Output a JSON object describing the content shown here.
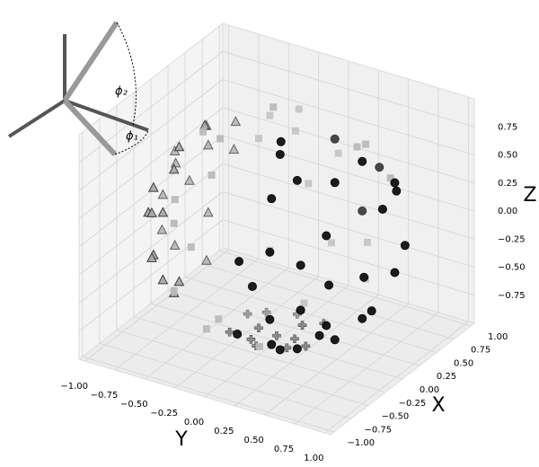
{
  "chart_data": {
    "type": "scatter3d",
    "xlabel": "X",
    "ylabel": "Y",
    "zlabel": "Z",
    "xlim": [
      -1.05,
      1.05
    ],
    "ylim": [
      -1.05,
      1.05
    ],
    "zlim": [
      -1,
      1
    ],
    "xticks": [
      {
        "value": -1,
        "label": "−1.00"
      },
      {
        "value": -0.75,
        "label": "−0.75"
      },
      {
        "value": -0.5,
        "label": "−0.50"
      },
      {
        "value": -0.25,
        "label": "−0.25"
      },
      {
        "value": 0,
        "label": "0.00"
      },
      {
        "value": 0.25,
        "label": "0.25"
      },
      {
        "value": 0.5,
        "label": "0.50"
      },
      {
        "value": 0.75,
        "label": "0.75"
      },
      {
        "value": 1,
        "label": "1.00"
      }
    ],
    "yticks": [
      {
        "value": -1,
        "label": "−1.00"
      },
      {
        "value": -0.75,
        "label": "−0.75"
      },
      {
        "value": -0.5,
        "label": "−0.50"
      },
      {
        "value": -0.25,
        "label": "−0.25"
      },
      {
        "value": 0,
        "label": "0.00"
      },
      {
        "value": 0.25,
        "label": "0.25"
      },
      {
        "value": 0.5,
        "label": "0.50"
      },
      {
        "value": 0.75,
        "label": "0.75"
      },
      {
        "value": 1,
        "label": "1.00"
      }
    ],
    "zticks": [
      {
        "value": -0.75,
        "label": "−0.75"
      },
      {
        "value": -0.5,
        "label": "−0.50"
      },
      {
        "value": -0.25,
        "label": "−0.25"
      },
      {
        "value": 0,
        "label": "0.00"
      },
      {
        "value": 0.25,
        "label": "0.25"
      },
      {
        "value": 0.5,
        "label": "0.50"
      },
      {
        "value": 0.75,
        "label": "0.75"
      }
    ],
    "grid": true,
    "annotations": [
      "ϕ₂",
      "ϕ₁"
    ],
    "series": [
      {
        "marker": "circle",
        "color": "#111111",
        "edgecolor": "#000000",
        "x": [
          0.3,
          -0.3,
          0.06,
          -0.1,
          0.5,
          -0.5,
          0.5,
          -0.5,
          0.2,
          -0.2,
          0.2,
          -0.2,
          -0.7,
          -0.7,
          0.7,
          -0.4,
          -0.4,
          -0.8,
          -0.8,
          -0.6,
          -0.6,
          -0.9,
          -0.3,
          -0.3,
          -0.75,
          -0.88,
          0.8,
          -0.55,
          -0.2,
          0.1,
          0.85,
          0.9
        ],
        "y": [
          0.9,
          0.9,
          0.85,
          0.85,
          0.7,
          0.7,
          0.7,
          0.7,
          0.6,
          0.6,
          0.6,
          0.6,
          0.6,
          0.6,
          0.6,
          0.4,
          0.4,
          0.4,
          0.4,
          0.3,
          0.3,
          0.2,
          0.2,
          0.2,
          0.1,
          0.3,
          0.4,
          0.75,
          0.15,
          0.3,
          0.0,
          0.2
        ],
        "z": [
          0.0,
          0.0,
          0.42,
          -0.41,
          0.4,
          0.4,
          -0.4,
          -0.4,
          0.7,
          0.7,
          -0.7,
          -0.7,
          0.2,
          -0.2,
          0.2,
          0.75,
          -0.75,
          0.3,
          -0.3,
          0.65,
          -0.65,
          0.2,
          0.87,
          -0.87,
          -0.55,
          0.0,
          0.3,
          0.0,
          0.92,
          -0.9,
          0.4,
          -0.2
        ]
      },
      {
        "marker": "square",
        "color": "#bbbbbb",
        "edgecolor": "#bbbbbb",
        "x": [
          0.9,
          0.8,
          0.8,
          0.6,
          0.6,
          0.6,
          0.6,
          0.3,
          0.3,
          -0.3,
          -0.6,
          -0.8,
          -0.9,
          -0.85,
          -0.8,
          -0.5,
          -0.6,
          0.9,
          0.7,
          0.7,
          0.4,
          -0.2,
          0.5,
          -0.7,
          0.8
        ],
        "y": [
          0.0,
          -0.3,
          0.3,
          -0.4,
          0.4,
          -0.4,
          0.4,
          -0.2,
          0.5,
          -0.3,
          -0.2,
          -0.4,
          -0.2,
          0.0,
          -0.4,
          -0.3,
          0.2,
          -0.25,
          -0.55,
          0.55,
          0.0,
          -0.5,
          -0.1,
          -0.45,
          0.0
        ],
        "z": [
          0.25,
          0.4,
          -0.4,
          0.6,
          0.6,
          -0.6,
          -0.6,
          0.88,
          0.75,
          0.85,
          0.7,
          0.3,
          0.2,
          -0.4,
          -0.3,
          -0.75,
          -0.7,
          -0.1,
          0.3,
          0.3,
          -0.85,
          0.8,
          0.8,
          0.45,
          -0.5
        ]
      },
      {
        "marker": "triangle",
        "color": "#aaaaaa",
        "edgecolor": "#333333",
        "x": [
          0.0,
          0.3,
          -0.3,
          0.0,
          0.0,
          0.4,
          -0.4,
          0.4,
          -0.4,
          0.2,
          -0.2,
          0.2,
          -0.2,
          -0.6,
          -0.6,
          0.6,
          0.0,
          -0.45,
          -0.45,
          0.45,
          -0.7,
          -0.7,
          0.1,
          -0.1
        ],
        "y": [
          -0.95,
          -0.9,
          -0.9,
          -0.85,
          -0.85,
          -0.8,
          -0.8,
          -0.8,
          -0.8,
          -0.7,
          -0.7,
          -0.7,
          -0.7,
          -0.7,
          -0.7,
          -0.7,
          -0.6,
          -0.6,
          -0.6,
          -0.6,
          -0.55,
          -0.55,
          -0.9,
          -0.9
        ],
        "z": [
          0.0,
          0.0,
          0.0,
          0.42,
          -0.42,
          0.3,
          0.3,
          -0.3,
          -0.3,
          0.6,
          0.6,
          -0.6,
          -0.6,
          0.2,
          -0.2,
          0.2,
          0.73,
          0.55,
          -0.55,
          0.55,
          0.3,
          -0.3,
          0.25,
          -0.25
        ]
      },
      {
        "marker": "plus",
        "color": "#888888",
        "edgecolor": "#444444",
        "x": [
          0.0,
          0.2,
          -0.2,
          0.2,
          -0.2,
          0.1,
          -0.1,
          0.3,
          -0.3,
          0.0,
          0.0,
          -0.25,
          0.25
        ],
        "y": [
          0.0,
          0.1,
          -0.1,
          -0.2,
          0.2,
          -0.3,
          0.3,
          0.0,
          0.0,
          0.15,
          -0.15,
          -0.25,
          0.25
        ],
        "z": [
          -0.95,
          -0.92,
          -0.92,
          -0.9,
          -0.9,
          -0.9,
          -0.9,
          -0.9,
          -0.9,
          -0.93,
          -0.93,
          -0.88,
          -0.88
        ]
      }
    ]
  }
}
